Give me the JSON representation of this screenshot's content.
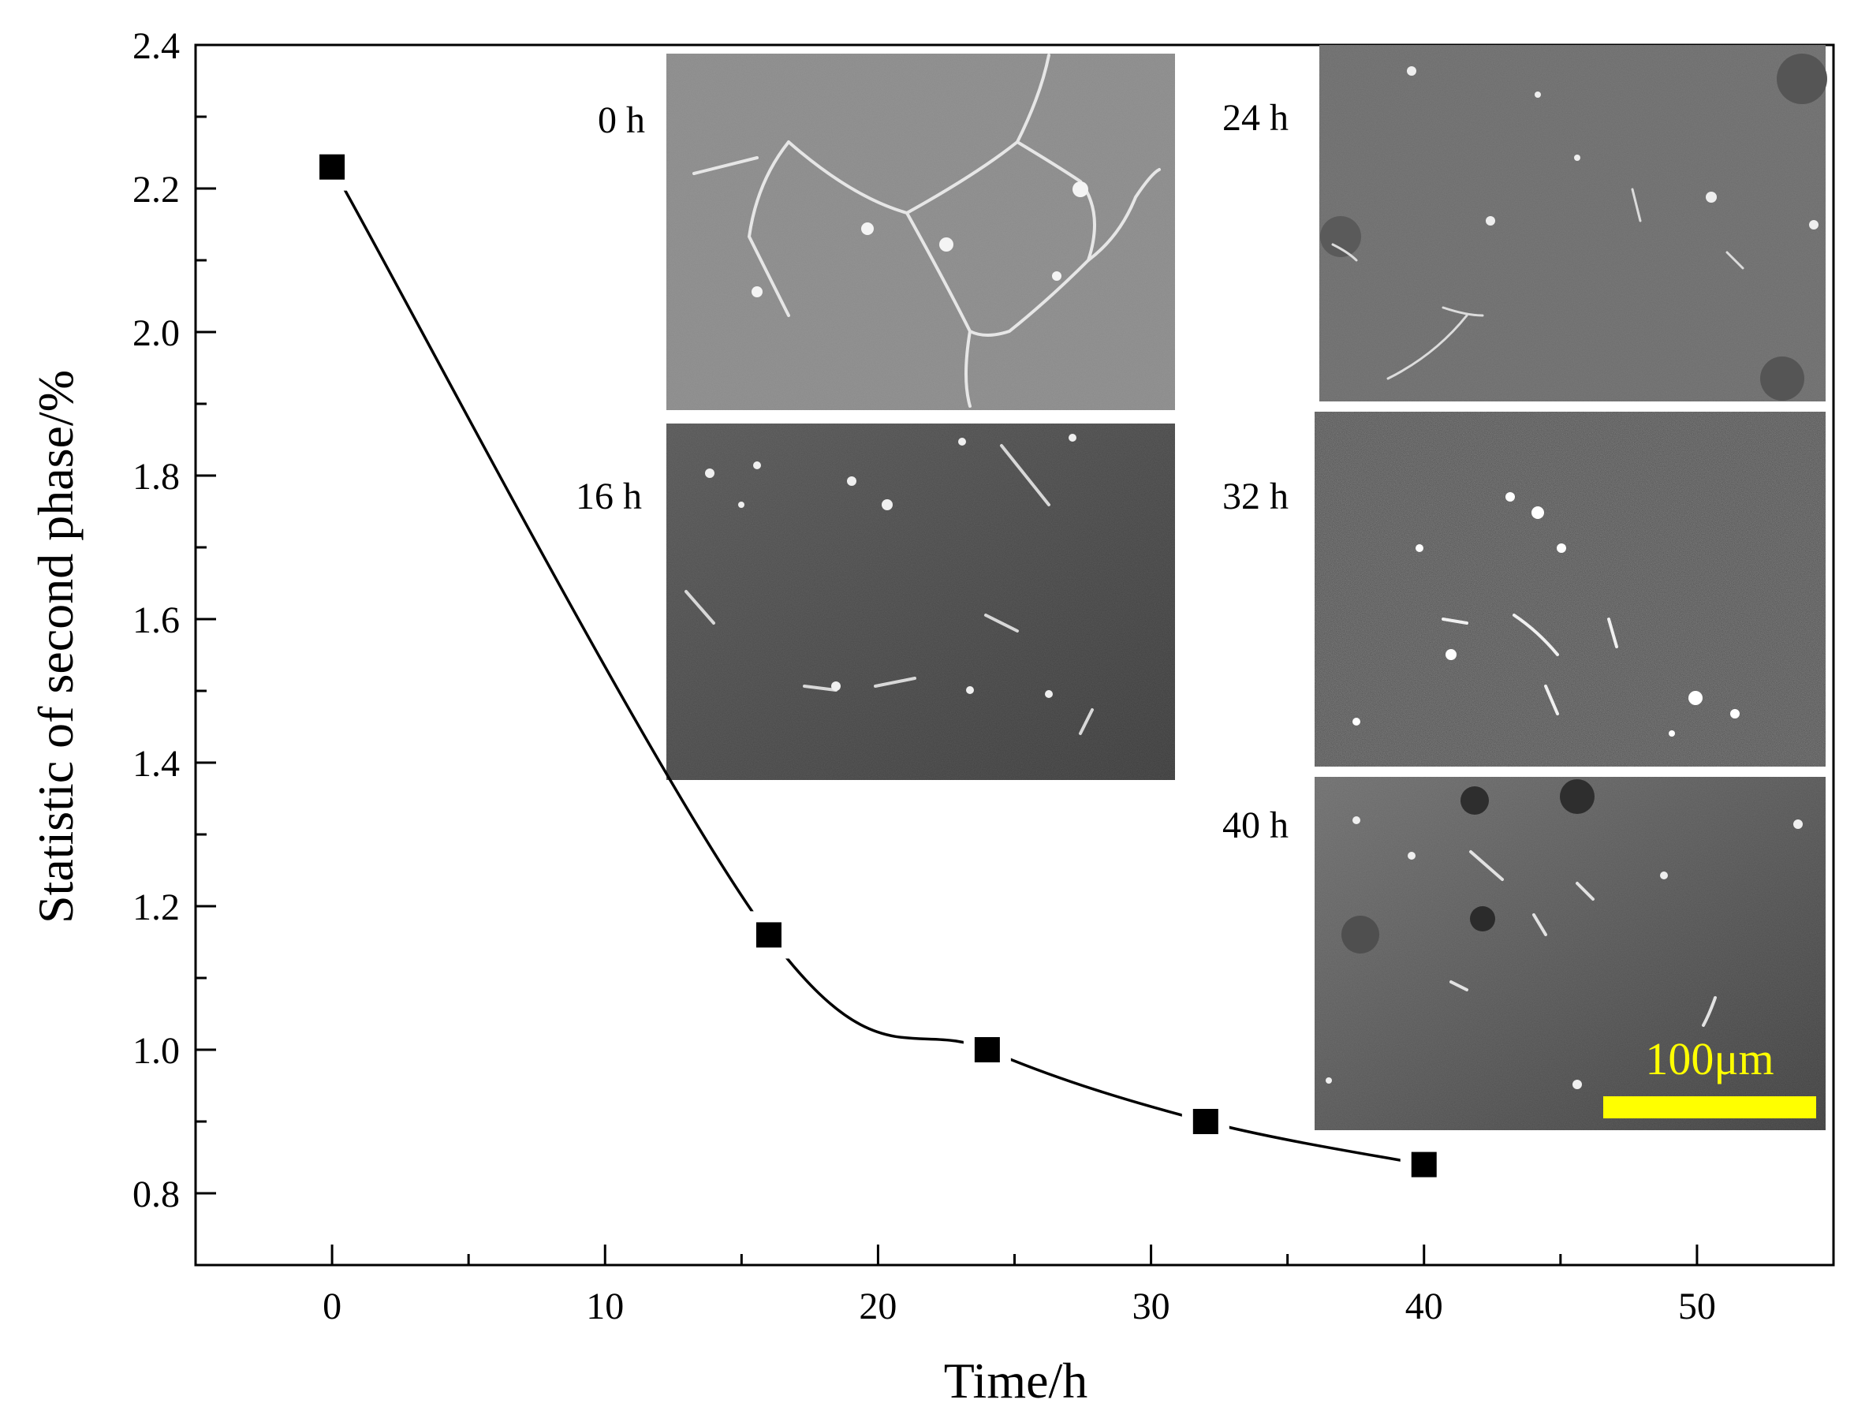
{
  "chart_data": {
    "type": "scatter",
    "title": "",
    "xlabel": "Time/h",
    "ylabel": "Statistic of second phase/%",
    "xlim": [
      -5,
      55
    ],
    "ylim": [
      0.7,
      2.4
    ],
    "xticks": [
      "0",
      "10",
      "20",
      "30",
      "40",
      "50"
    ],
    "yticks": [
      "0.8",
      "1.0",
      "1.2",
      "1.4",
      "1.6",
      "1.8",
      "2.0",
      "2.2",
      "2.4"
    ],
    "marker": "square",
    "marker_color": "#000000",
    "fit_line": "smooth curve",
    "series": [
      {
        "x": [
          0,
          16,
          24,
          32,
          40
        ],
        "y": [
          2.23,
          1.16,
          1.0,
          0.9,
          0.84
        ]
      }
    ],
    "insets": [
      {
        "label": "0 h",
        "kind": "micrograph"
      },
      {
        "label": "16 h",
        "kind": "micrograph"
      },
      {
        "label": "24 h",
        "kind": "micrograph"
      },
      {
        "label": "32 h",
        "kind": "micrograph"
      },
      {
        "label": "40 h",
        "kind": "micrograph"
      }
    ],
    "scale_bar": {
      "label": "100μm",
      "color": "#ffff00"
    }
  }
}
